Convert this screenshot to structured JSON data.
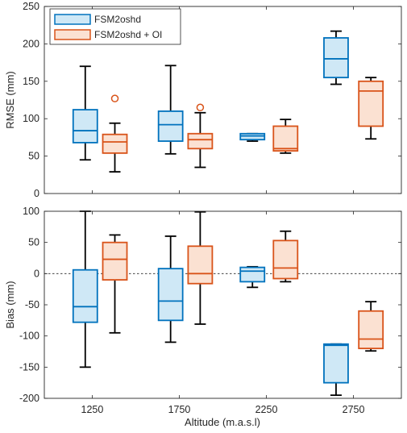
{
  "chart_data": [
    {
      "type": "boxplot",
      "ylabel": "RMSE (mm)",
      "ylim": [
        0,
        250
      ],
      "yticks": [
        0,
        50,
        100,
        150,
        200,
        250
      ],
      "series": [
        {
          "name": "FSM2oshd",
          "color": "#0072BD",
          "fill": "#CFE8F6"
        },
        {
          "name": "FSM2oshd + OI",
          "color": "#D95319",
          "fill": "#FBE1D2"
        }
      ],
      "legend_position": "top-left",
      "boxes": [
        {
          "series": 0,
          "x": 1210,
          "whisker_low": 45,
          "q1": 68,
          "median": 84,
          "q3": 112,
          "whisker_high": 170,
          "outliers": []
        },
        {
          "series": 1,
          "x": 1380,
          "whisker_low": 29,
          "q1": 54,
          "median": 69,
          "q3": 79,
          "whisker_high": 94,
          "outliers": [
            127
          ]
        },
        {
          "series": 0,
          "x": 1700,
          "whisker_low": 53,
          "q1": 70,
          "median": 92,
          "q3": 110,
          "whisker_high": 171,
          "outliers": []
        },
        {
          "series": 1,
          "x": 1870,
          "whisker_low": 35,
          "q1": 60,
          "median": 72,
          "q3": 80,
          "whisker_high": 108,
          "outliers": [
            115
          ]
        },
        {
          "series": 0,
          "x": 2170,
          "whisker_low": 70,
          "q1": 72,
          "median": 77,
          "q3": 80,
          "whisker_high": 80,
          "outliers": []
        },
        {
          "series": 1,
          "x": 2360,
          "whisker_low": 54,
          "q1": 57,
          "median": 60,
          "q3": 90,
          "whisker_high": 99,
          "outliers": []
        },
        {
          "series": 0,
          "x": 2650,
          "whisker_low": 146,
          "q1": 155,
          "median": 180,
          "q3": 208,
          "whisker_high": 217,
          "outliers": []
        },
        {
          "series": 1,
          "x": 2850,
          "whisker_low": 73,
          "q1": 90,
          "median": 137,
          "q3": 150,
          "whisker_high": 155,
          "outliers": []
        }
      ]
    },
    {
      "type": "boxplot",
      "xlabel": "Altitude (m.a.s.l)",
      "ylabel": "Bias (mm)",
      "ylim": [
        -200,
        100
      ],
      "yticks": [
        -200,
        -150,
        -100,
        -50,
        0,
        50,
        100
      ],
      "xlim": [
        975,
        3025
      ],
      "xticks": [
        1250,
        1750,
        2250,
        2750
      ],
      "reference_line": 0,
      "boxes": [
        {
          "series": 0,
          "x": 1210,
          "whisker_low": -150,
          "q1": -78,
          "median": -53,
          "q3": 6,
          "whisker_high": 100
        },
        {
          "series": 1,
          "x": 1380,
          "whisker_low": -95,
          "q1": -10,
          "median": 23,
          "q3": 50,
          "whisker_high": 62
        },
        {
          "series": 0,
          "x": 1700,
          "whisker_low": -110,
          "q1": -75,
          "median": -44,
          "q3": 8,
          "whisker_high": 60
        },
        {
          "series": 1,
          "x": 1870,
          "whisker_low": -81,
          "q1": -16,
          "median": 0,
          "q3": 44,
          "whisker_high": 99
        },
        {
          "series": 0,
          "x": 2170,
          "whisker_low": -22,
          "q1": -13,
          "median": 4,
          "q3": 10,
          "whisker_high": 11
        },
        {
          "series": 1,
          "x": 2360,
          "whisker_low": -13,
          "q1": -8,
          "median": 9,
          "q3": 53,
          "whisker_high": 68
        },
        {
          "series": 0,
          "x": 2650,
          "whisker_low": -195,
          "q1": -175,
          "median": -115,
          "q3": -113,
          "whisker_high": -113
        },
        {
          "series": 1,
          "x": 2850,
          "whisker_low": -124,
          "q1": -120,
          "median": -105,
          "q3": -60,
          "whisker_high": -45
        }
      ]
    }
  ]
}
